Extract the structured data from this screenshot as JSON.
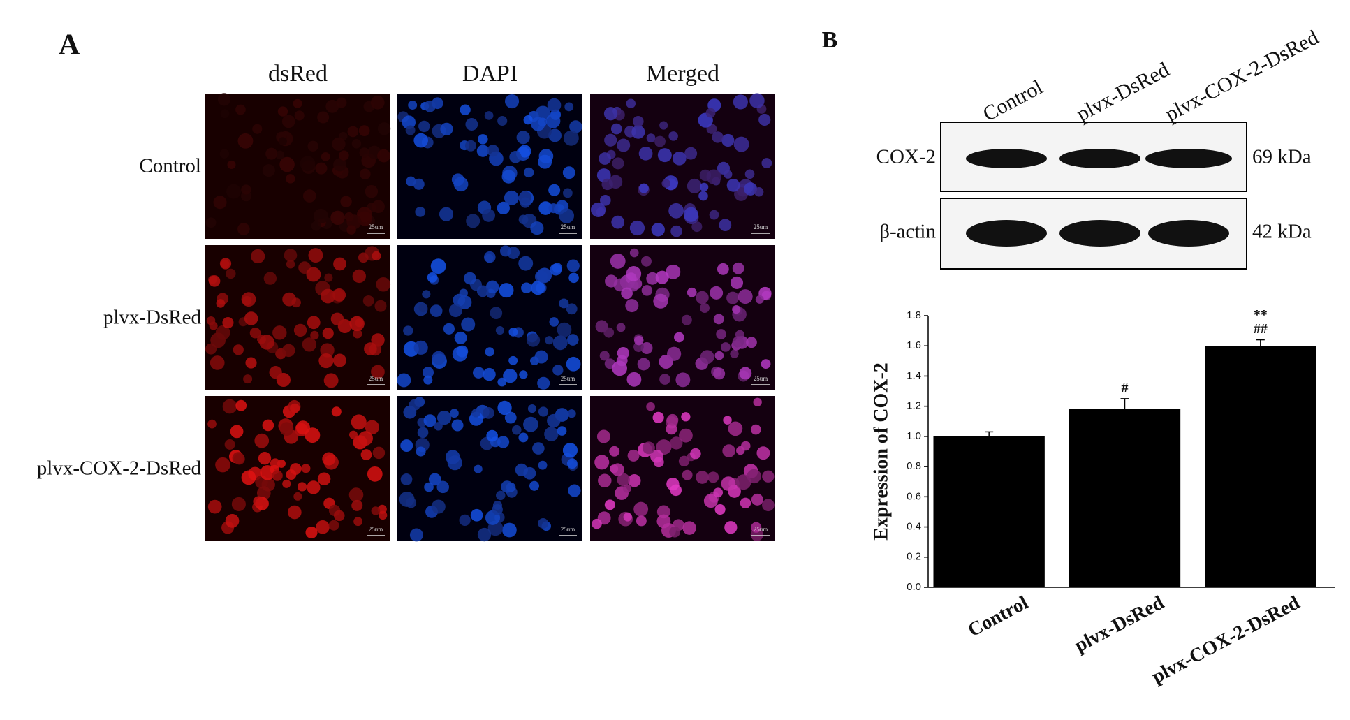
{
  "panel_a": {
    "label": "A",
    "columns": [
      "dsRed",
      "DAPI",
      "Merged"
    ],
    "rows": [
      "Control",
      "plvx-DsRed",
      "plvx-COX-2-DsRed"
    ],
    "scale_bar": "25um"
  },
  "panel_b": {
    "label": "B",
    "blot": {
      "lanes": [
        "Control",
        "plvx-DsRed",
        "plvx-COX-2-DsRed"
      ],
      "bands": [
        {
          "name": "COX-2",
          "size": "69 kDa"
        },
        {
          "name": "β-actin",
          "size": "42 kDa"
        }
      ]
    }
  },
  "chart_data": {
    "type": "bar",
    "y_label": "Expression of COX-2",
    "categories": [
      "Control",
      "plvx-DsRed",
      "plvx-COX-2-DsRed"
    ],
    "values": [
      1.0,
      1.18,
      1.6
    ],
    "errors": [
      0.03,
      0.07,
      0.04
    ],
    "significance": [
      null,
      [
        "#"
      ],
      [
        "**",
        "##"
      ]
    ],
    "color": "#000000",
    "ylim": [
      0,
      1.8
    ],
    "yticks": [
      {
        "value": 0,
        "label": "0.0"
      },
      0.2,
      0.4,
      0.6,
      0.8,
      {
        "value": 1,
        "label": "1.0"
      },
      1.2,
      1.4,
      1.6,
      1.8
    ]
  }
}
